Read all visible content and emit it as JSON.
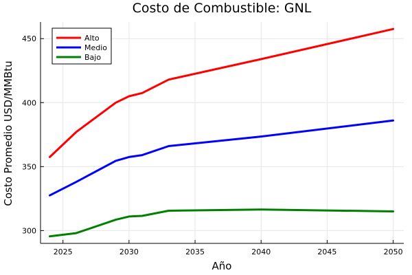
{
  "chart_data": {
    "type": "line",
    "title": "Costo de Combustible: GNL",
    "xlabel": "Año",
    "ylabel": "Costo Promedio USD/MMBtu",
    "xlim": [
      2023.3,
      2050.8
    ],
    "ylim": [
      290,
      463
    ],
    "xticks": [
      2025,
      2030,
      2035,
      2040,
      2045,
      2050
    ],
    "yticks": [
      300,
      350,
      400,
      450
    ],
    "grid": true,
    "legend_position": "top-left",
    "series": [
      {
        "name": "Alto",
        "color": "#ff0000",
        "x": [
          2024,
          2026,
          2029,
          2030,
          2031,
          2033,
          2040,
          2050
        ],
        "y": [
          357.5,
          377,
          400,
          405,
          407.5,
          418,
          434,
          457.5
        ]
      },
      {
        "name": "Medio",
        "color": "#0000ff",
        "x": [
          2024,
          2026,
          2029,
          2030,
          2031,
          2033,
          2040,
          2050
        ],
        "y": [
          327.5,
          338,
          354.5,
          357.5,
          359,
          366,
          373.5,
          386
        ]
      },
      {
        "name": "Bajo",
        "color": "#008000",
        "x": [
          2024,
          2026,
          2029,
          2030,
          2031,
          2033,
          2040,
          2050
        ],
        "y": [
          295.5,
          298,
          308.5,
          311,
          311.5,
          315.5,
          316.5,
          315
        ]
      }
    ]
  }
}
